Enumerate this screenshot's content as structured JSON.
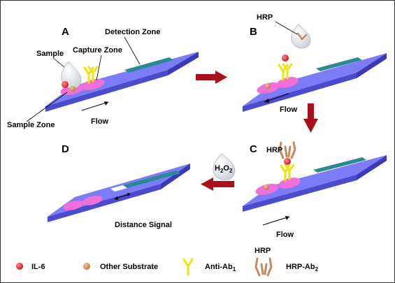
{
  "panels": {
    "a": {
      "letter": "A",
      "sample": "Sample",
      "capture_zone": "Capture Zone",
      "detection_zone": "Detection Zone",
      "sample_zone": "Sample Zone",
      "flow": "Flow"
    },
    "b": {
      "letter": "B",
      "hrp": "HRP",
      "flow": "Flow"
    },
    "c": {
      "letter": "C",
      "hrp": "HRP",
      "flow": "Flow"
    },
    "d": {
      "letter": "D",
      "h2o2_main": "H",
      "h2o2_sub1": "2",
      "h2o2_mid": "O",
      "h2o2_sub2": "2",
      "distance_signal": "Distance Signal"
    }
  },
  "legend": {
    "il6": "IL-6",
    "other_substrate": "Other Substrate",
    "anti_ab_main": "Anti-Ab",
    "anti_ab_sub": "1",
    "hrp_label": "HRP",
    "hrp_ab_main": "HRP-Ab",
    "hrp_ab_sub": "2"
  },
  "colors": {
    "strip_top": "#7b7cf6",
    "strip_side": "#4b4bd0",
    "zone_pink": "#f06fd8",
    "detection_teal": "#2a8a94",
    "arrow_red": "#a8101a",
    "il6_red": "#e01f2c",
    "substrate_tan": "#c98a52",
    "antibody_yellow": "#f1e20a",
    "hrp_ab_brown": "#c48a62"
  }
}
